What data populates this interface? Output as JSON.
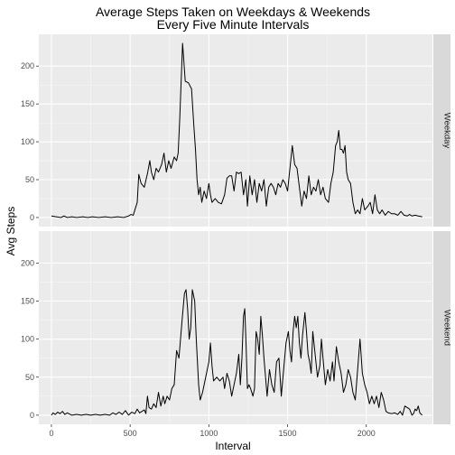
{
  "chart_data": {
    "type": "line",
    "title": "Average Steps Taken on Weekdays & Weekends",
    "subtitle": "Every Five Minute Intervals",
    "xlabel": "Interval",
    "ylabel": "Avg Steps",
    "xlim": [
      -80,
      2420
    ],
    "ylim": [
      -12,
      242
    ],
    "x_ticks": [
      0,
      500,
      1000,
      1500,
      2000
    ],
    "y_ticks": [
      0,
      50,
      100,
      150,
      200
    ],
    "grid": true,
    "legend": "none",
    "line_color": "#000000",
    "panel_background": "#ebebeb",
    "strip_background": "#d9d9d9",
    "series": [
      {
        "name": "Weekday",
        "points": [
          [
            0,
            2
          ],
          [
            30,
            1
          ],
          [
            60,
            0
          ],
          [
            80,
            2
          ],
          [
            100,
            0
          ],
          [
            130,
            1
          ],
          [
            160,
            0
          ],
          [
            200,
            1
          ],
          [
            230,
            0
          ],
          [
            260,
            1
          ],
          [
            300,
            0
          ],
          [
            340,
            1
          ],
          [
            380,
            0
          ],
          [
            420,
            1
          ],
          [
            460,
            0
          ],
          [
            490,
            2
          ],
          [
            505,
            4
          ],
          [
            520,
            3
          ],
          [
            530,
            10
          ],
          [
            545,
            20
          ],
          [
            555,
            57
          ],
          [
            570,
            45
          ],
          [
            590,
            40
          ],
          [
            610,
            58
          ],
          [
            625,
            75
          ],
          [
            635,
            60
          ],
          [
            650,
            50
          ],
          [
            665,
            65
          ],
          [
            680,
            60
          ],
          [
            700,
            70
          ],
          [
            715,
            85
          ],
          [
            730,
            60
          ],
          [
            745,
            75
          ],
          [
            760,
            65
          ],
          [
            780,
            80
          ],
          [
            795,
            75
          ],
          [
            805,
            85
          ],
          [
            815,
            130
          ],
          [
            825,
            185
          ],
          [
            833,
            230
          ],
          [
            840,
            210
          ],
          [
            850,
            180
          ],
          [
            870,
            178
          ],
          [
            890,
            170
          ],
          [
            905,
            120
          ],
          [
            915,
            90
          ],
          [
            925,
            50
          ],
          [
            935,
            30
          ],
          [
            945,
            40
          ],
          [
            955,
            20
          ],
          [
            970,
            35
          ],
          [
            985,
            25
          ],
          [
            1000,
            45
          ],
          [
            1010,
            30
          ],
          [
            1020,
            20
          ],
          [
            1040,
            25
          ],
          [
            1060,
            20
          ],
          [
            1080,
            18
          ],
          [
            1100,
            30
          ],
          [
            1115,
            52
          ],
          [
            1130,
            55
          ],
          [
            1145,
            55
          ],
          [
            1160,
            35
          ],
          [
            1175,
            60
          ],
          [
            1190,
            58
          ],
          [
            1205,
            60
          ],
          [
            1220,
            30
          ],
          [
            1235,
            50
          ],
          [
            1245,
            15
          ],
          [
            1260,
            55
          ],
          [
            1275,
            30
          ],
          [
            1290,
            50
          ],
          [
            1305,
            20
          ],
          [
            1320,
            45
          ],
          [
            1335,
            35
          ],
          [
            1350,
            50
          ],
          [
            1365,
            15
          ],
          [
            1380,
            40
          ],
          [
            1395,
            45
          ],
          [
            1410,
            40
          ],
          [
            1425,
            30
          ],
          [
            1440,
            45
          ],
          [
            1455,
            40
          ],
          [
            1470,
            50
          ],
          [
            1485,
            45
          ],
          [
            1500,
            35
          ],
          [
            1515,
            65
          ],
          [
            1530,
            95
          ],
          [
            1545,
            70
          ],
          [
            1560,
            65
          ],
          [
            1575,
            40
          ],
          [
            1590,
            15
          ],
          [
            1605,
            35
          ],
          [
            1620,
            25
          ],
          [
            1635,
            55
          ],
          [
            1650,
            30
          ],
          [
            1665,
            40
          ],
          [
            1680,
            35
          ],
          [
            1695,
            50
          ],
          [
            1710,
            30
          ],
          [
            1725,
            40
          ],
          [
            1740,
            25
          ],
          [
            1760,
            20
          ],
          [
            1775,
            45
          ],
          [
            1790,
            60
          ],
          [
            1805,
            95
          ],
          [
            1815,
            100
          ],
          [
            1825,
            115
          ],
          [
            1835,
            90
          ],
          [
            1845,
            90
          ],
          [
            1855,
            85
          ],
          [
            1865,
            95
          ],
          [
            1875,
            60
          ],
          [
            1885,
            50
          ],
          [
            1900,
            45
          ],
          [
            1915,
            20
          ],
          [
            1930,
            5
          ],
          [
            1945,
            10
          ],
          [
            1960,
            5
          ],
          [
            1975,
            25
          ],
          [
            1990,
            10
          ],
          [
            2010,
            15
          ],
          [
            2025,
            20
          ],
          [
            2040,
            5
          ],
          [
            2055,
            30
          ],
          [
            2070,
            10
          ],
          [
            2085,
            5
          ],
          [
            2100,
            10
          ],
          [
            2120,
            3
          ],
          [
            2140,
            8
          ],
          [
            2160,
            5
          ],
          [
            2180,
            5
          ],
          [
            2200,
            3
          ],
          [
            2220,
            8
          ],
          [
            2240,
            3
          ],
          [
            2260,
            2
          ],
          [
            2275,
            4
          ],
          [
            2290,
            2
          ],
          [
            2310,
            3
          ],
          [
            2330,
            2
          ],
          [
            2355,
            1
          ]
        ]
      },
      {
        "name": "Weekend",
        "points": [
          [
            0,
            0
          ],
          [
            10,
            3
          ],
          [
            25,
            1
          ],
          [
            40,
            4
          ],
          [
            55,
            2
          ],
          [
            70,
            5
          ],
          [
            85,
            1
          ],
          [
            100,
            3
          ],
          [
            130,
            0
          ],
          [
            160,
            1
          ],
          [
            190,
            0
          ],
          [
            220,
            1
          ],
          [
            250,
            0
          ],
          [
            280,
            1
          ],
          [
            310,
            0
          ],
          [
            340,
            1
          ],
          [
            370,
            0
          ],
          [
            390,
            3
          ],
          [
            410,
            1
          ],
          [
            430,
            4
          ],
          [
            450,
            1
          ],
          [
            470,
            6
          ],
          [
            490,
            0
          ],
          [
            510,
            4
          ],
          [
            530,
            2
          ],
          [
            545,
            8
          ],
          [
            560,
            3
          ],
          [
            575,
            5
          ],
          [
            590,
            7
          ],
          [
            600,
            2
          ],
          [
            610,
            25
          ],
          [
            620,
            10
          ],
          [
            635,
            8
          ],
          [
            650,
            15
          ],
          [
            665,
            10
          ],
          [
            680,
            30
          ],
          [
            695,
            12
          ],
          [
            710,
            25
          ],
          [
            720,
            15
          ],
          [
            735,
            25
          ],
          [
            750,
            20
          ],
          [
            765,
            35
          ],
          [
            780,
            40
          ],
          [
            795,
            85
          ],
          [
            810,
            75
          ],
          [
            820,
            100
          ],
          [
            830,
            125
          ],
          [
            845,
            160
          ],
          [
            855,
            165
          ],
          [
            865,
            140
          ],
          [
            875,
            100
          ],
          [
            885,
            115
          ],
          [
            895,
            165
          ],
          [
            910,
            150
          ],
          [
            920,
            100
          ],
          [
            935,
            40
          ],
          [
            945,
            20
          ],
          [
            960,
            30
          ],
          [
            980,
            50
          ],
          [
            1000,
            70
          ],
          [
            1010,
            95
          ],
          [
            1020,
            65
          ],
          [
            1030,
            45
          ],
          [
            1050,
            50
          ],
          [
            1070,
            45
          ],
          [
            1090,
            50
          ],
          [
            1100,
            35
          ],
          [
            1115,
            55
          ],
          [
            1130,
            45
          ],
          [
            1145,
            25
          ],
          [
            1160,
            40
          ],
          [
            1175,
            55
          ],
          [
            1190,
            80
          ],
          [
            1200,
            40
          ],
          [
            1210,
            75
          ],
          [
            1220,
            130
          ],
          [
            1228,
            140
          ],
          [
            1236,
            95
          ],
          [
            1245,
            35
          ],
          [
            1255,
            40
          ],
          [
            1265,
            35
          ],
          [
            1280,
            25
          ],
          [
            1290,
            35
          ],
          [
            1300,
            110
          ],
          [
            1310,
            100
          ],
          [
            1320,
            80
          ],
          [
            1330,
            130
          ],
          [
            1340,
            105
          ],
          [
            1350,
            75
          ],
          [
            1360,
            50
          ],
          [
            1370,
            25
          ],
          [
            1385,
            60
          ],
          [
            1400,
            40
          ],
          [
            1415,
            30
          ],
          [
            1430,
            70
          ],
          [
            1445,
            75
          ],
          [
            1460,
            25
          ],
          [
            1475,
            60
          ],
          [
            1490,
            95
          ],
          [
            1505,
            110
          ],
          [
            1515,
            85
          ],
          [
            1525,
            70
          ],
          [
            1535,
            110
          ],
          [
            1545,
            130
          ],
          [
            1555,
            115
          ],
          [
            1565,
            130
          ],
          [
            1575,
            95
          ],
          [
            1585,
            75
          ],
          [
            1595,
            105
          ],
          [
            1610,
            135
          ],
          [
            1620,
            110
          ],
          [
            1630,
            80
          ],
          [
            1640,
            70
          ],
          [
            1650,
            55
          ],
          [
            1660,
            110
          ],
          [
            1675,
            80
          ],
          [
            1690,
            50
          ],
          [
            1705,
            65
          ],
          [
            1715,
            100
          ],
          [
            1725,
            75
          ],
          [
            1740,
            40
          ],
          [
            1755,
            60
          ],
          [
            1770,
            45
          ],
          [
            1785,
            70
          ],
          [
            1795,
            45
          ],
          [
            1810,
            90
          ],
          [
            1825,
            70
          ],
          [
            1840,
            55
          ],
          [
            1855,
            30
          ],
          [
            1870,
            40
          ],
          [
            1885,
            60
          ],
          [
            1900,
            50
          ],
          [
            1915,
            30
          ],
          [
            1930,
            20
          ],
          [
            1945,
            60
          ],
          [
            1960,
            100
          ],
          [
            1975,
            55
          ],
          [
            1990,
            40
          ],
          [
            2005,
            30
          ],
          [
            2020,
            15
          ],
          [
            2035,
            25
          ],
          [
            2050,
            15
          ],
          [
            2065,
            25
          ],
          [
            2080,
            10
          ],
          [
            2095,
            30
          ],
          [
            2110,
            20
          ],
          [
            2125,
            5
          ],
          [
            2140,
            3
          ],
          [
            2160,
            2
          ],
          [
            2180,
            3
          ],
          [
            2200,
            1
          ],
          [
            2215,
            5
          ],
          [
            2230,
            0
          ],
          [
            2245,
            12
          ],
          [
            2260,
            10
          ],
          [
            2275,
            8
          ],
          [
            2290,
            0
          ],
          [
            2300,
            2
          ],
          [
            2310,
            8
          ],
          [
            2320,
            6
          ],
          [
            2330,
            12
          ],
          [
            2340,
            3
          ],
          [
            2355,
            0
          ]
        ]
      }
    ]
  }
}
